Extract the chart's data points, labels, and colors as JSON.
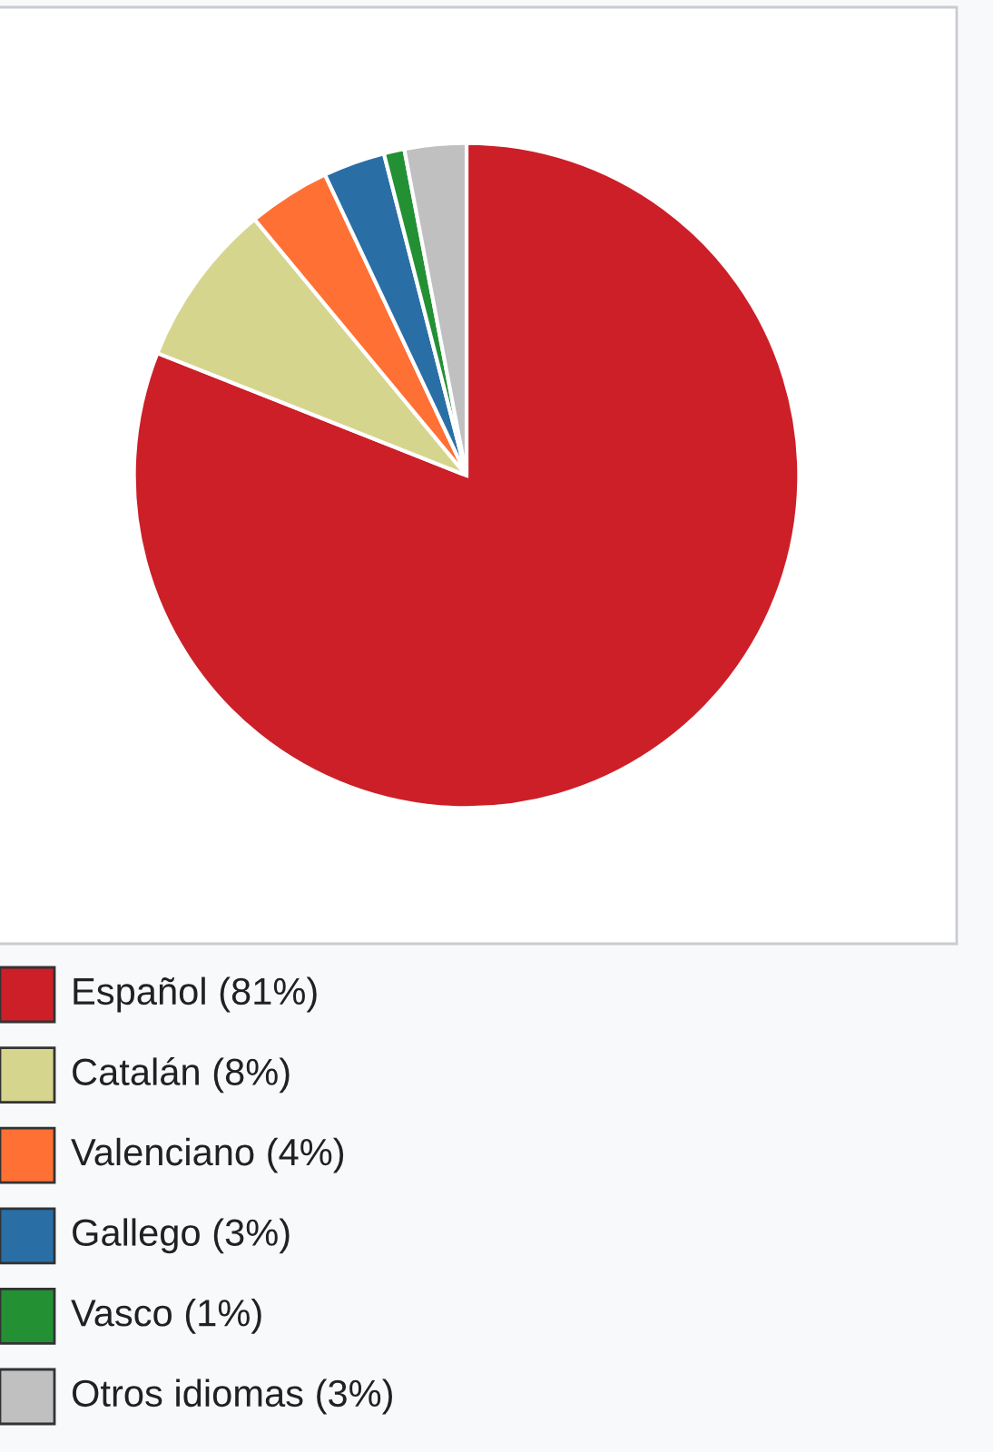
{
  "chart_data": {
    "type": "pie",
    "categories": [
      "Español (81%)",
      "Catalán (8%)",
      "Valenciano (4%)",
      "Gallego (3%)",
      "Vasco (1%)",
      "Otros idiomas (3%)"
    ],
    "values": [
      81,
      8,
      4,
      3,
      1,
      3
    ],
    "colors": [
      "#cc1f28",
      "#d6d58e",
      "#ff7034",
      "#2a6ea6",
      "#239034",
      "#c0c0c0"
    ],
    "legend": "bottom left"
  }
}
